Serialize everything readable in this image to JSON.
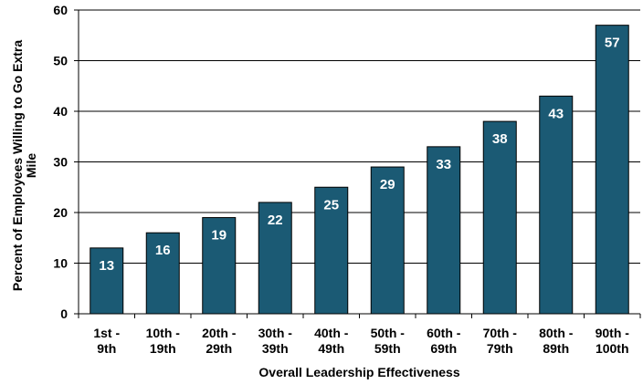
{
  "chart_data": {
    "type": "bar",
    "categories": [
      [
        "1st -",
        "9th"
      ],
      [
        "10th -",
        "19th"
      ],
      [
        "20th -",
        "29th"
      ],
      [
        "30th -",
        "39th"
      ],
      [
        "40th -",
        "49th"
      ],
      [
        "50th -",
        "59th"
      ],
      [
        "60th -",
        "69th"
      ],
      [
        "70th -",
        "79th"
      ],
      [
        "80th -",
        "89th"
      ],
      [
        "90th -",
        "100th"
      ]
    ],
    "values": [
      13,
      16,
      19,
      22,
      25,
      29,
      33,
      38,
      43,
      57
    ],
    "data_labels": [
      "13",
      "16",
      "19",
      "22",
      "25",
      "29",
      "33",
      "38",
      "43",
      "57"
    ],
    "xlabel": "Overall Leadership Effectiveness",
    "ylabel": [
      "Percent of Employees Willing to Go Extra",
      "Mile"
    ],
    "ylim": [
      0,
      60
    ],
    "yticks": [
      0,
      10,
      20,
      30,
      40,
      50,
      60
    ],
    "grid": true,
    "legend": "none",
    "bar_color": "#1b5a74",
    "bar_edge_color": "#000000"
  }
}
